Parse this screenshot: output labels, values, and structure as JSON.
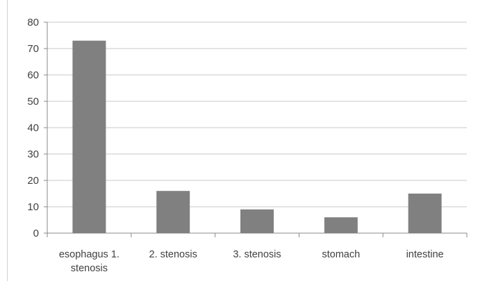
{
  "chart_data": {
    "type": "bar",
    "categories": [
      [
        "esophagus 1.",
        "stenosis"
      ],
      [
        "2. stenosis"
      ],
      [
        "3. stenosis"
      ],
      [
        "stomach"
      ],
      [
        "intestine"
      ]
    ],
    "values": [
      73,
      16,
      9,
      6,
      15
    ],
    "ylim": [
      0,
      80
    ],
    "yticks": [
      0,
      10,
      20,
      30,
      40,
      50,
      60,
      70,
      80
    ],
    "grid": true,
    "bar_color": "#808080",
    "grid_color": "#c8c8c8",
    "axis_color": "#888888"
  }
}
